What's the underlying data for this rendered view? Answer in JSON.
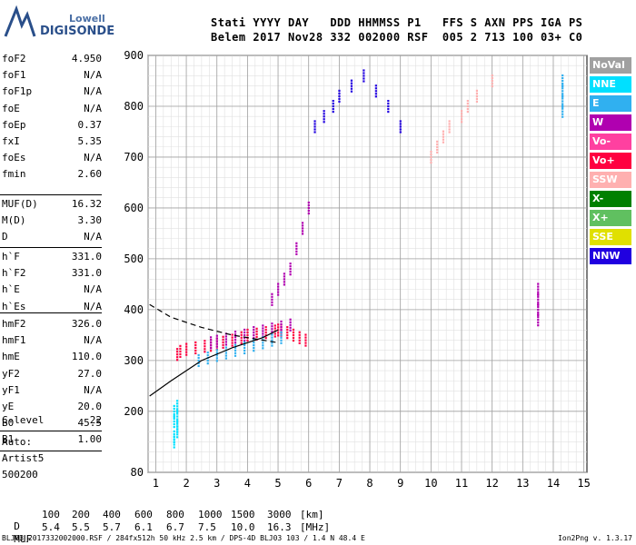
{
  "logo": {
    "line1": "Lowell",
    "line2": "DIGISONDE",
    "line1_color": "#4a6fa5",
    "line2_color": "#2a4f8a"
  },
  "header": {
    "labels": "Stati YYYY DAY   DDD HHMMSS P1   FFS S AXN PPS IGA PS",
    "values": "Belem 2017 Nov28 332 002000 RSF  005 2 713 100 03+ C0"
  },
  "params_group1": [
    {
      "name": "foF2",
      "value": "4.950"
    },
    {
      "name": "foF1",
      "value": "N/A"
    },
    {
      "name": "foF1p",
      "value": "N/A"
    },
    {
      "name": "foE",
      "value": "N/A"
    },
    {
      "name": "foEp",
      "value": "0.37"
    },
    {
      "name": "fxI",
      "value": "5.35"
    },
    {
      "name": "foEs",
      "value": "N/A"
    },
    {
      "name": "fmin",
      "value": "2.60"
    }
  ],
  "params_group2": [
    {
      "name": "MUF(D)",
      "value": "16.32"
    },
    {
      "name": "M(D)",
      "value": "3.30"
    },
    {
      "name": "D",
      "value": "N/A"
    }
  ],
  "params_group3": [
    {
      "name": "h`F",
      "value": "331.0"
    },
    {
      "name": "h`F2",
      "value": "331.0"
    },
    {
      "name": "h`E",
      "value": "N/A"
    },
    {
      "name": "h`Es",
      "value": "N/A"
    }
  ],
  "params_group4": [
    {
      "name": "hmF2",
      "value": "326.0"
    },
    {
      "name": "hmF1",
      "value": "N/A"
    },
    {
      "name": "hmE",
      "value": "110.0"
    },
    {
      "name": "yF2",
      "value": "27.0"
    },
    {
      "name": "yF1",
      "value": "N/A"
    },
    {
      "name": "yE",
      "value": "20.0"
    },
    {
      "name": "B0",
      "value": "45.5"
    },
    {
      "name": "B1",
      "value": "1.00"
    }
  ],
  "clevel": {
    "name": "C-level",
    "value": "22"
  },
  "auto": {
    "line1": "Auto:",
    "line2": "Artist5",
    "line3": "500200"
  },
  "legend": [
    {
      "label": "NoVal",
      "color": "#a0a0a0"
    },
    {
      "label": "NNE",
      "color": "#00e0ff"
    },
    {
      "label": "E",
      "color": "#30b0f0"
    },
    {
      "label": "W",
      "color": "#b000b0"
    },
    {
      "label": "Vo-",
      "color": "#ff40a0"
    },
    {
      "label": "Vo+",
      "color": "#ff0040"
    },
    {
      "label": "SSW",
      "color": "#ffb0b0"
    },
    {
      "label": "X-",
      "color": "#008000"
    },
    {
      "label": "X+",
      "color": "#60c060"
    },
    {
      "label": "SSE",
      "color": "#e0e000"
    },
    {
      "label": "NNW",
      "color": "#2000e0"
    }
  ],
  "muf_table": {
    "d_label": "D",
    "d_values": [
      "100",
      "200",
      "400",
      "600",
      "800",
      "1000",
      "1500",
      "3000",
      "[km]"
    ],
    "muf_label": "MUF",
    "muf_values": [
      "5.4",
      "5.5",
      "5.7",
      "6.1",
      "6.7",
      "7.5",
      "10.0",
      "16.3",
      "[MHz]"
    ]
  },
  "footer": {
    "left": "BLJ03_2017332002000.RSF / 284fx512h 50 kHz 2.5 km / DPS-4D BLJ03 103 / 1.4 N 48.4 E",
    "right": "Ion2Png v. 1.3.17"
  },
  "chart_data": {
    "type": "scatter",
    "title": "",
    "xlabel": "",
    "ylabel": "",
    "xlim": [
      0.75,
      15.1
    ],
    "ylim": [
      80,
      900
    ],
    "x_ticks": [
      1,
      2,
      3,
      4,
      5,
      6,
      7,
      8,
      9,
      10,
      11,
      12,
      13,
      14,
      15
    ],
    "y_ticks": [
      80,
      200,
      300,
      400,
      500,
      600,
      700,
      800,
      900
    ],
    "grid": true,
    "legend_position": "right",
    "traces": [
      {
        "x": [
          1.7,
          1.8,
          2.0,
          2.3,
          2.6,
          2.8,
          3.0,
          3.2,
          3.5,
          3.8,
          4.0,
          4.3,
          4.6,
          4.9,
          5.0,
          5.1,
          5.3,
          5.5,
          5.7,
          5.9
        ],
        "y": [
          312,
          318,
          322,
          325,
          328,
          330,
          333,
          336,
          340,
          345,
          350,
          352,
          355,
          358,
          360,
          360,
          355,
          350,
          345,
          340
        ],
        "color": "#ff0040"
      },
      {
        "x": [
          2.8,
          3.0,
          3.3,
          3.6,
          3.9,
          4.2,
          4.5,
          4.8,
          5.1,
          5.4
        ],
        "y": [
          335,
          338,
          342,
          346,
          350,
          355,
          358,
          362,
          366,
          370
        ],
        "color": "#b000b0"
      },
      {
        "x": [
          2.4,
          2.7,
          3.0,
          3.3,
          3.6,
          3.9,
          4.2,
          4.5,
          4.8,
          5.1
        ],
        "y": [
          300,
          305,
          310,
          315,
          320,
          325,
          330,
          335,
          340,
          345
        ],
        "color": "#30b0f0"
      },
      {
        "x": [
          1.6,
          1.6,
          1.7,
          1.7,
          1.6,
          1.7,
          1.6,
          1.7
        ],
        "y": [
          140,
          150,
          160,
          170,
          180,
          190,
          200,
          210
        ],
        "color": "#00e0ff"
      },
      {
        "x": [
          4.8,
          5.0,
          5.2,
          5.4,
          5.6,
          5.8,
          6.0
        ],
        "y": [
          420,
          440,
          460,
          480,
          520,
          560,
          600
        ],
        "color": "#b000b0"
      },
      {
        "x": [
          6.2,
          6.5,
          6.8,
          7.0,
          7.4,
          7.8,
          8.2,
          8.6,
          9.0
        ],
        "y": [
          760,
          780,
          800,
          820,
          840,
          860,
          830,
          800,
          760
        ],
        "color": "#2000e0"
      },
      {
        "x": [
          10.0,
          10.2,
          10.4,
          10.6,
          11.0,
          11.2,
          11.5,
          12.0
        ],
        "y": [
          700,
          720,
          740,
          760,
          780,
          800,
          820,
          850
        ],
        "color": "#ffb0b0"
      },
      {
        "x": [
          13.5,
          13.5,
          13.5,
          13.5
        ],
        "y": [
          380,
          400,
          420,
          440
        ],
        "color": "#b000b0"
      },
      {
        "x": [
          14.3,
          14.3,
          14.3,
          14.3
        ],
        "y": [
          790,
          810,
          830,
          850
        ],
        "color": "#30b0f0"
      }
    ],
    "profile_solid": {
      "x": [
        0.8,
        1.5,
        2.5,
        3.5,
        4.5,
        5.0
      ],
      "y": [
        230,
        260,
        300,
        325,
        345,
        360
      ]
    },
    "profile_dashed": {
      "x": [
        0.8,
        1.5,
        2.5,
        3.5,
        4.5,
        5.0
      ],
      "y": [
        410,
        385,
        365,
        350,
        340,
        335
      ]
    }
  }
}
